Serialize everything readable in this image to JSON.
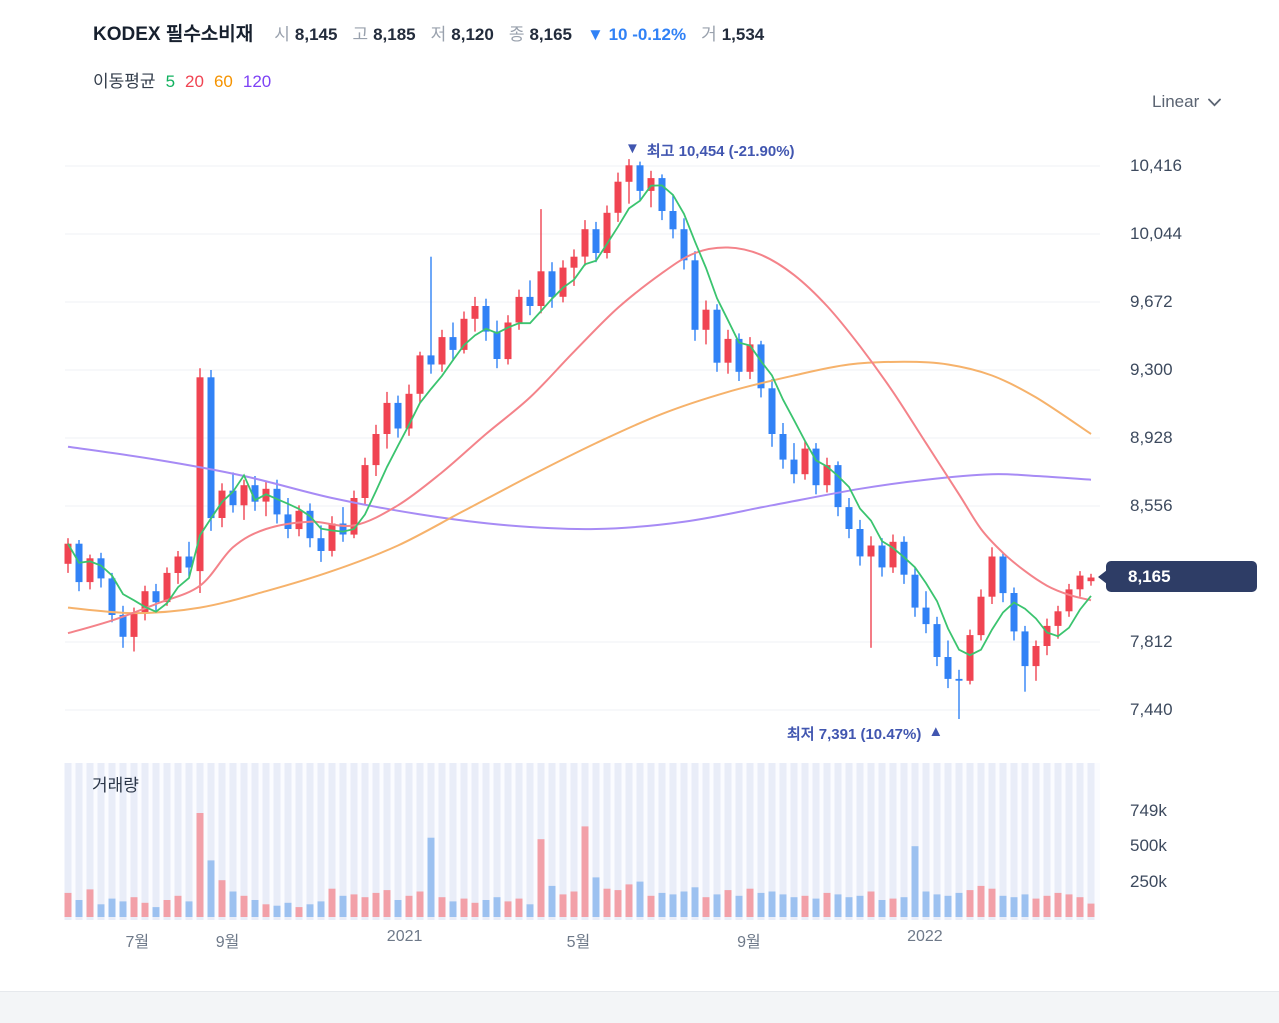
{
  "header": {
    "title": "KODEX 필수소비재",
    "stats": [
      {
        "label": "시",
        "value": "8,145"
      },
      {
        "label": "고",
        "value": "8,185"
      },
      {
        "label": "저",
        "value": "8,120"
      },
      {
        "label": "종",
        "value": "8,165"
      }
    ],
    "change": {
      "arrow": "▼",
      "text": "10 -0.12%",
      "color": "#3182f6"
    },
    "volume": {
      "label": "거",
      "value": "1,534"
    }
  },
  "legend": {
    "label": "이동평균",
    "items": [
      {
        "label": "5",
        "color": "#11b15f"
      },
      {
        "label": "20",
        "color": "#f04452"
      },
      {
        "label": "60",
        "color": "#f59300"
      },
      {
        "label": "120",
        "color": "#7d42f5"
      }
    ]
  },
  "scale_selector": {
    "label": "Linear"
  },
  "price_badge": {
    "value": "8,165",
    "bg": "#2e3d66"
  },
  "annotations": {
    "color": "#4156b0",
    "high": {
      "arrow": "▼",
      "text": "최고 10,454 (-21.90%)"
    },
    "low": {
      "text": "최저 7,391 (10.47%)",
      "arrow": "▲"
    }
  },
  "volume_panel": {
    "label": "거래량"
  },
  "chart_data": {
    "type": "candlestick+volume",
    "title": "KODEX 필수소비재 weekly price chart",
    "y_axis": {
      "ticks": [
        {
          "label": "10,416",
          "price": 10416
        },
        {
          "label": "10,044",
          "price": 10044
        },
        {
          "label": "9,672",
          "price": 9672
        },
        {
          "label": "9,300",
          "price": 9300
        },
        {
          "label": "8,928",
          "price": 8928
        },
        {
          "label": "8,556",
          "price": 8556
        },
        {
          "label": "7,812",
          "price": 7812
        },
        {
          "label": "7,440",
          "price": 7440
        }
      ],
      "current": {
        "label": "8,165",
        "price": 8165
      }
    },
    "volume_axis": {
      "ticks": [
        {
          "label": "749k",
          "v": 749
        },
        {
          "label": "500k",
          "v": 500
        },
        {
          "label": "250k",
          "v": 250
        }
      ]
    },
    "x_axis": {
      "ticks": [
        {
          "label": "7월",
          "i": 6.3
        },
        {
          "label": "9월",
          "i": 14.5
        },
        {
          "label": "2021",
          "i": 30.6
        },
        {
          "label": "5월",
          "i": 46.4
        },
        {
          "label": "9월",
          "i": 61.9
        },
        {
          "label": "2022",
          "i": 77.9
        }
      ]
    },
    "extremes": {
      "high": 10454,
      "high_change_pct": -21.9,
      "low": 7391,
      "low_change_pct": 10.47
    },
    "colors": {
      "up": "#f04452",
      "down": "#3182f6",
      "ma5": "#3bc46f",
      "ma20": "#f4838a",
      "ma60": "#f6b26b",
      "ma120": "#a78bf5",
      "grid": "#eff1f4",
      "vol_up": "#f2a0a8",
      "vol_down": "#9cc1f0",
      "vol_stripe": "#e9edf8",
      "vol_panel_bg": "#fbfcff"
    },
    "candles_format": [
      "open",
      "high",
      "low",
      "close",
      "volume_k"
    ],
    "candles": [
      [
        8240,
        8380,
        8190,
        8350,
        170
      ],
      [
        8350,
        8370,
        8090,
        8140,
        120
      ],
      [
        8140,
        8290,
        8100,
        8270,
        195
      ],
      [
        8270,
        8300,
        8110,
        8160,
        90
      ],
      [
        8160,
        8190,
        7920,
        7960,
        130
      ],
      [
        7960,
        8010,
        7780,
        7840,
        110
      ],
      [
        7840,
        8000,
        7760,
        7970,
        140
      ],
      [
        7970,
        8120,
        7930,
        8090,
        100
      ],
      [
        8090,
        8130,
        7980,
        8030,
        70
      ],
      [
        8030,
        8220,
        8010,
        8190,
        120
      ],
      [
        8190,
        8310,
        8130,
        8280,
        150
      ],
      [
        8280,
        8360,
        8170,
        8220,
        110
      ],
      [
        8200,
        9310,
        8080,
        9260,
        735
      ],
      [
        9260,
        9300,
        8420,
        8490,
        400
      ],
      [
        8490,
        8680,
        8440,
        8640,
        260
      ],
      [
        8640,
        8740,
        8520,
        8560,
        180
      ],
      [
        8560,
        8700,
        8480,
        8670,
        150
      ],
      [
        8670,
        8720,
        8530,
        8580,
        120
      ],
      [
        8580,
        8690,
        8500,
        8650,
        90
      ],
      [
        8650,
        8700,
        8460,
        8510,
        80
      ],
      [
        8510,
        8600,
        8380,
        8430,
        100
      ],
      [
        8430,
        8560,
        8390,
        8530,
        70
      ],
      [
        8530,
        8570,
        8330,
        8380,
        90
      ],
      [
        8380,
        8450,
        8250,
        8310,
        110
      ],
      [
        8310,
        8500,
        8280,
        8460,
        200
      ],
      [
        8460,
        8550,
        8360,
        8400,
        150
      ],
      [
        8400,
        8640,
        8380,
        8600,
        160
      ],
      [
        8600,
        8820,
        8560,
        8780,
        140
      ],
      [
        8780,
        9000,
        8720,
        8950,
        170
      ],
      [
        8950,
        9180,
        8870,
        9120,
        190
      ],
      [
        9120,
        9160,
        8930,
        8980,
        120
      ],
      [
        8980,
        9220,
        8940,
        9170,
        150
      ],
      [
        9170,
        9400,
        9120,
        9380,
        180
      ],
      [
        9380,
        9920,
        9280,
        9330,
        560
      ],
      [
        9330,
        9520,
        9290,
        9480,
        140
      ],
      [
        9480,
        9560,
        9350,
        9410,
        110
      ],
      [
        9410,
        9620,
        9390,
        9580,
        130
      ],
      [
        9580,
        9700,
        9510,
        9650,
        100
      ],
      [
        9650,
        9690,
        9460,
        9510,
        120
      ],
      [
        9510,
        9570,
        9310,
        9360,
        140
      ],
      [
        9360,
        9600,
        9330,
        9560,
        110
      ],
      [
        9560,
        9740,
        9520,
        9700,
        130
      ],
      [
        9700,
        9790,
        9600,
        9650,
        90
      ],
      [
        9650,
        10180,
        9610,
        9840,
        550
      ],
      [
        9840,
        9890,
        9640,
        9700,
        220
      ],
      [
        9700,
        9900,
        9670,
        9860,
        160
      ],
      [
        9860,
        9960,
        9760,
        9920,
        180
      ],
      [
        9920,
        10120,
        9870,
        10070,
        640
      ],
      [
        10070,
        10110,
        9890,
        9940,
        280
      ],
      [
        9940,
        10200,
        9910,
        10160,
        200
      ],
      [
        10160,
        10380,
        10110,
        10330,
        190
      ],
      [
        10330,
        10454,
        10210,
        10420,
        230
      ],
      [
        10420,
        10440,
        10230,
        10280,
        250
      ],
      [
        10280,
        10390,
        10190,
        10350,
        150
      ],
      [
        10350,
        10370,
        10120,
        10170,
        170
      ],
      [
        10170,
        10260,
        10020,
        10070,
        160
      ],
      [
        10070,
        10130,
        9850,
        9900,
        180
      ],
      [
        9900,
        9950,
        9460,
        9520,
        210
      ],
      [
        9520,
        9680,
        9440,
        9630,
        140
      ],
      [
        9630,
        9660,
        9290,
        9340,
        160
      ],
      [
        9340,
        9520,
        9280,
        9470,
        190
      ],
      [
        9470,
        9500,
        9240,
        9290,
        150
      ],
      [
        9290,
        9480,
        9250,
        9440,
        200
      ],
      [
        9440,
        9460,
        9150,
        9200,
        170
      ],
      [
        9200,
        9250,
        8880,
        8950,
        180
      ],
      [
        8950,
        9010,
        8760,
        8810,
        160
      ],
      [
        8810,
        8900,
        8680,
        8730,
        140
      ],
      [
        8730,
        8910,
        8700,
        8870,
        150
      ],
      [
        8870,
        8900,
        8620,
        8670,
        130
      ],
      [
        8670,
        8820,
        8630,
        8780,
        170
      ],
      [
        8780,
        8800,
        8500,
        8550,
        160
      ],
      [
        8550,
        8600,
        8380,
        8430,
        140
      ],
      [
        8430,
        8480,
        8230,
        8280,
        150
      ],
      [
        8280,
        8390,
        7780,
        8340,
        180
      ],
      [
        8340,
        8380,
        8170,
        8220,
        120
      ],
      [
        8220,
        8400,
        8190,
        8360,
        130
      ],
      [
        8360,
        8390,
        8130,
        8180,
        140
      ],
      [
        8180,
        8220,
        7950,
        8000,
        500
      ],
      [
        8000,
        8090,
        7860,
        7910,
        180
      ],
      [
        7910,
        7950,
        7680,
        7730,
        160
      ],
      [
        7730,
        7820,
        7560,
        7610,
        150
      ],
      [
        7610,
        7660,
        7391,
        7600,
        170
      ],
      [
        7600,
        7880,
        7580,
        7850,
        190
      ],
      [
        7850,
        8100,
        7820,
        8060,
        220
      ],
      [
        8060,
        8330,
        8020,
        8280,
        200
      ],
      [
        8280,
        8300,
        8030,
        8080,
        150
      ],
      [
        8080,
        8110,
        7820,
        7870,
        140
      ],
      [
        7870,
        7900,
        7540,
        7680,
        160
      ],
      [
        7680,
        7820,
        7600,
        7790,
        130
      ],
      [
        7790,
        7940,
        7740,
        7900,
        150
      ],
      [
        7900,
        8010,
        7830,
        7980,
        170
      ],
      [
        7980,
        8130,
        7950,
        8100,
        160
      ],
      [
        8100,
        8200,
        8060,
        8175,
        140
      ],
      [
        8145,
        8185,
        8120,
        8165,
        95
      ]
    ],
    "ma5": {
      "derived": true,
      "window": 5,
      "source": "close"
    },
    "ma20_points": [
      [
        0,
        7860
      ],
      [
        4,
        7930
      ],
      [
        8,
        8020
      ],
      [
        12,
        8120
      ],
      [
        15,
        8330
      ],
      [
        18,
        8430
      ],
      [
        22,
        8470
      ],
      [
        26,
        8450
      ],
      [
        30,
        8560
      ],
      [
        34,
        8740
      ],
      [
        38,
        8950
      ],
      [
        42,
        9150
      ],
      [
        46,
        9400
      ],
      [
        50,
        9640
      ],
      [
        54,
        9830
      ],
      [
        57,
        9940
      ],
      [
        60,
        9970
      ],
      [
        63,
        9930
      ],
      [
        66,
        9820
      ],
      [
        69,
        9650
      ],
      [
        72,
        9430
      ],
      [
        75,
        9180
      ],
      [
        78,
        8900
      ],
      [
        81,
        8620
      ],
      [
        83,
        8430
      ],
      [
        85,
        8300
      ],
      [
        87,
        8200
      ],
      [
        89,
        8120
      ],
      [
        91,
        8070
      ],
      [
        93,
        8040
      ]
    ],
    "ma60_points": [
      [
        0,
        8000
      ],
      [
        6,
        7970
      ],
      [
        12,
        8000
      ],
      [
        18,
        8090
      ],
      [
        24,
        8200
      ],
      [
        30,
        8340
      ],
      [
        36,
        8530
      ],
      [
        42,
        8720
      ],
      [
        48,
        8900
      ],
      [
        54,
        9060
      ],
      [
        60,
        9180
      ],
      [
        66,
        9270
      ],
      [
        71,
        9330
      ],
      [
        76,
        9345
      ],
      [
        80,
        9330
      ],
      [
        84,
        9270
      ],
      [
        88,
        9150
      ],
      [
        93,
        8950
      ]
    ],
    "ma120_points": [
      [
        0,
        8880
      ],
      [
        8,
        8810
      ],
      [
        16,
        8720
      ],
      [
        24,
        8600
      ],
      [
        32,
        8510
      ],
      [
        40,
        8450
      ],
      [
        48,
        8430
      ],
      [
        56,
        8470
      ],
      [
        64,
        8560
      ],
      [
        72,
        8650
      ],
      [
        78,
        8700
      ],
      [
        84,
        8730
      ],
      [
        88,
        8720
      ],
      [
        93,
        8700
      ]
    ]
  }
}
